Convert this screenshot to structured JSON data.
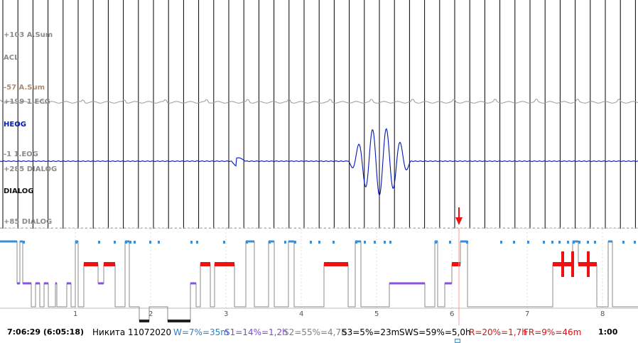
{
  "channels": [
    {
      "label": "+103 A.Sum",
      "color": "#8a8a8a",
      "small": true
    },
    {
      "label": "ACL",
      "color": "#8a8a8a",
      "small": true
    },
    {
      "label": "-57 A.Sum",
      "color": "#b08a70",
      "small": true
    },
    {
      "label": "+199 1.ECG",
      "color": "#8a8a8a",
      "small": true
    },
    {
      "label": "HEOG",
      "color": "#0018b4",
      "small": false
    },
    {
      "label": "-1 1.EOG",
      "color": "#8a8a8a",
      "small": true
    },
    {
      "label": "+285 DIALOG",
      "color": "#8a8a8a",
      "small": true
    },
    {
      "label": "DIALOG",
      "color": "#111111",
      "small": false
    },
    {
      "label": "+85 DIALOG",
      "color": "#8a8a8a",
      "small": true
    }
  ],
  "hypnogram": {
    "hour_labels": [
      "1",
      "2",
      "3",
      "4",
      "5",
      "6",
      "7",
      "8"
    ],
    "colors": {
      "wake": "#3a8fd8",
      "rem": "#ee1111",
      "s1": "#8a50e0",
      "s2": "#808080",
      "s3": "#202020"
    }
  },
  "status": {
    "time_left": "7:06:29 (6:05:18)",
    "name": "Никита 11072020",
    "w": "W=7%=35m",
    "s1": "S1=14%=1,2h",
    "s2": "S2=55%=4,7h",
    "s3": "S3=5%=23m",
    "sws": "SWS=59%=5,0h",
    "r": "R=20%=1,7h",
    "fr": "FR=9%=46m",
    "time_right": "1:00",
    "colors": {
      "w": "#2a7fd0",
      "s1": "#7a4ad0",
      "s2": "#808080",
      "s3": "#000000",
      "sws": "#000000",
      "r": "#e01010",
      "fr": "#e01010",
      "name": "#000000"
    }
  }
}
